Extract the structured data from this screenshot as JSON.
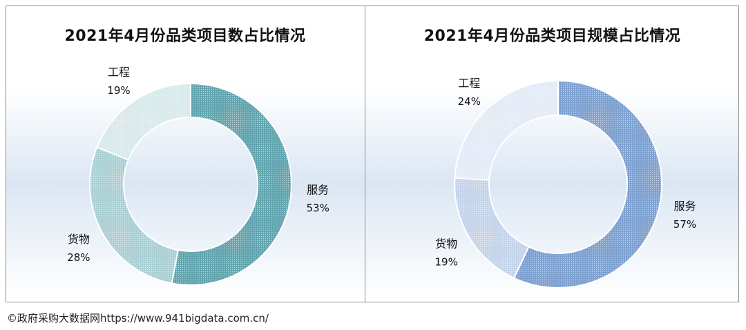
{
  "source_text": "©政府采购大数据网https://www.941bigdata.com.cn/",
  "chart_data": [
    {
      "type": "pie",
      "donut": true,
      "title": "2021年4月份品类项目数占比情况",
      "slices": [
        {
          "label": "服务",
          "value": 53,
          "value_label": "53%",
          "color": "#5fa3ad"
        },
        {
          "label": "货物",
          "value": 28,
          "value_label": "28%",
          "color": "#a9cfd3"
        },
        {
          "label": "工程",
          "value": 19,
          "value_label": "19%",
          "color": "#d8e9eb"
        }
      ]
    },
    {
      "type": "pie",
      "donut": true,
      "title": "2021年4月份品类项目规模占比情况",
      "slices": [
        {
          "label": "服务",
          "value": 57,
          "value_label": "57%",
          "color": "#7b9fcf"
        },
        {
          "label": "货物",
          "value": 19,
          "value_label": "19%",
          "color": "#c3d3ea"
        },
        {
          "label": "工程",
          "value": 24,
          "value_label": "24%",
          "color": "#e3eaf5"
        }
      ]
    }
  ]
}
